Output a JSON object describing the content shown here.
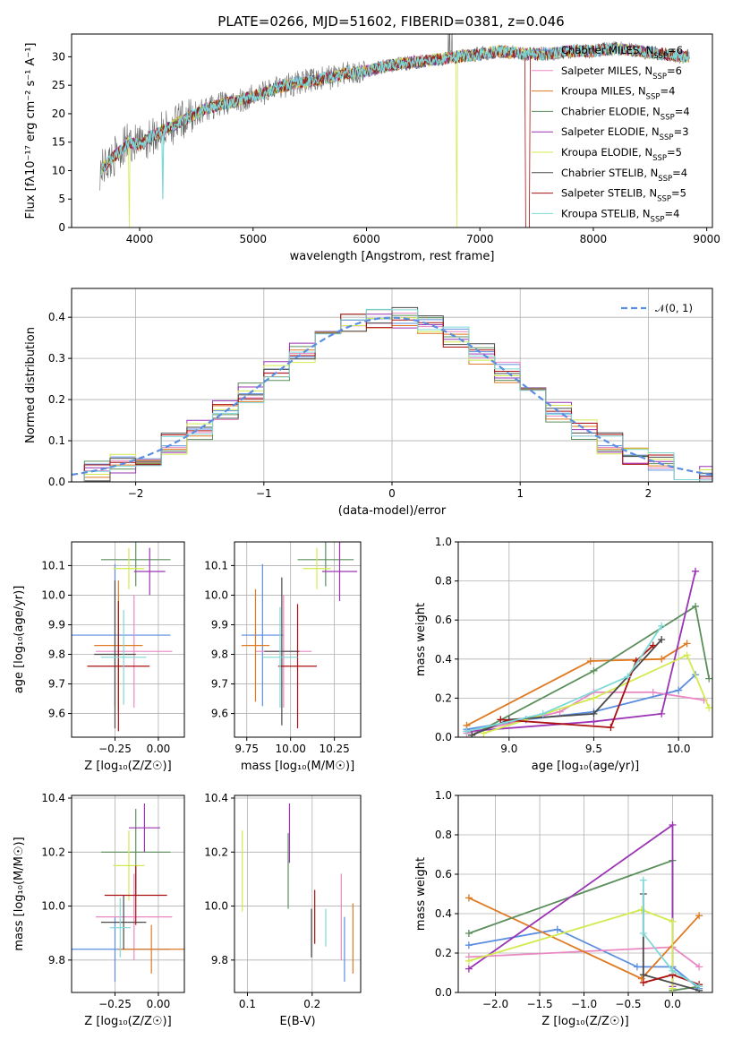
{
  "title": "PLATE=0266, MJD=51602, FIBERID=0381, z=0.046",
  "colors": {
    "chabrier_miles": "#5b8ee0",
    "salpeter_miles": "#ea88c4",
    "kroupa_miles": "#e07a22",
    "chabrier_elodie": "#5c8f5c",
    "salpeter_elodie": "#9b34b4",
    "kroupa_elodie": "#d2ea4e",
    "chabrier_stelib": "#4a4a4a",
    "salpeter_stelib": "#aa1010",
    "kroupa_stelib": "#7fd8d8",
    "gaussian": "#5b8ee0"
  },
  "chart_data": [
    {
      "id": "spectrum",
      "type": "line",
      "title": "PLATE=0266, MJD=51602, FIBERID=0381, z=0.046",
      "xlabel": "wavelength [Angstrom, rest frame]",
      "ylabel": "Flux [fλ10⁻¹⁷ erg cm⁻² s⁻¹ A⁻¹]",
      "xlim": [
        3400,
        9050
      ],
      "ylim": [
        0,
        34
      ],
      "xticks": [
        "4000",
        "5000",
        "6000",
        "7000",
        "8000",
        "9000"
      ],
      "yticks": [
        "0",
        "5",
        "10",
        "15",
        "20",
        "25",
        "30"
      ],
      "grid": false,
      "legend_position": "right",
      "continuum": {
        "x": [
          3650,
          3700,
          3800,
          3900,
          4000,
          4100,
          4200,
          4400,
          4600,
          4800,
          5000,
          5200,
          5400,
          5600,
          5800,
          6000,
          6200,
          6400,
          6600,
          6800,
          7000,
          7200,
          7400,
          7600,
          7800,
          8000,
          8200,
          8400,
          8600,
          8800
        ],
        "y": [
          10,
          11,
          13,
          15,
          14.5,
          16,
          17,
          19,
          21,
          22,
          23,
          24.5,
          25.5,
          26,
          27,
          27.5,
          28.5,
          29,
          29.5,
          30,
          30.5,
          31,
          30.5,
          30.5,
          31,
          31,
          31.5,
          31,
          30.5,
          30
        ]
      },
      "series": [
        {
          "name": "Chabrier MILES",
          "nssp": "6",
          "color": "chabrier_miles"
        },
        {
          "name": "Salpeter MILES",
          "nssp": "6",
          "color": "salpeter_miles"
        },
        {
          "name": "Kroupa MILES",
          "nssp": "4",
          "color": "kroupa_miles"
        },
        {
          "name": "Chabrier ELODIE",
          "nssp": "4",
          "color": "chabrier_elodie"
        },
        {
          "name": "Salpeter ELODIE",
          "nssp": "3",
          "color": "salpeter_elodie"
        },
        {
          "name": "Kroupa ELODIE",
          "nssp": "5",
          "color": "kroupa_elodie"
        },
        {
          "name": "Chabrier STELIB",
          "nssp": "4",
          "color": "chabrier_stelib"
        },
        {
          "name": "Salpeter STELIB",
          "nssp": "5",
          "color": "salpeter_stelib"
        },
        {
          "name": "Kroupa STELIB",
          "nssp": "4",
          "color": "kroupa_stelib"
        }
      ]
    },
    {
      "id": "residuals",
      "type": "histogram",
      "xlabel": "(data-model)/error",
      "ylabel": "Normed distribution",
      "xlim": [
        -2.5,
        2.5
      ],
      "ylim": [
        0,
        0.47
      ],
      "xticks": [
        "−2",
        "−1",
        "0",
        "1",
        "2"
      ],
      "yticks": [
        "0.0",
        "0.1",
        "0.2",
        "0.3",
        "0.4"
      ],
      "grid": true,
      "legend_position": "top-right",
      "legend_label": "𝒩(0, 1)",
      "bin_width": 0.2
    },
    {
      "id": "age_vs_Z",
      "type": "errorbar",
      "xlabel": "Z [log₁₀(Z/Z☉)]",
      "ylabel": "age  [log₁₀(age/yr)]",
      "xlim": [
        -0.5,
        0.15
      ],
      "ylim": [
        9.52,
        10.18
      ],
      "xticks": [
        "−0.25",
        "0.00"
      ],
      "yticks": [
        "9.6",
        "9.7",
        "9.8",
        "9.9",
        "10.0",
        "10.1"
      ],
      "grid": true,
      "points": [
        {
          "series": "Chabrier MILES",
          "x": -0.25,
          "xerr": 0.32,
          "y": 9.865,
          "yerr": 0.24
        },
        {
          "series": "Salpeter MILES",
          "x": -0.14,
          "xerr": 0.22,
          "y": 9.81,
          "yerr": 0.19
        },
        {
          "series": "Kroupa MILES",
          "x": -0.23,
          "xerr": 0.14,
          "y": 9.83,
          "yerr": 0.22
        },
        {
          "series": "Chabrier ELODIE",
          "x": -0.13,
          "xerr": 0.2,
          "y": 10.12,
          "yerr": 0.09
        },
        {
          "series": "Salpeter ELODIE",
          "x": -0.05,
          "xerr": 0.09,
          "y": 10.08,
          "yerr": 0.08
        },
        {
          "series": "Kroupa ELODIE",
          "x": -0.17,
          "xerr": 0.09,
          "y": 10.09,
          "yerr": 0.07
        },
        {
          "series": "Chabrier STELIB",
          "x": -0.25,
          "xerr": 0.12,
          "y": 9.8,
          "yerr": 0.25
        },
        {
          "series": "Salpeter STELIB",
          "x": -0.23,
          "xerr": 0.18,
          "y": 9.76,
          "yerr": 0.22
        },
        {
          "series": "Kroupa STELIB",
          "x": -0.2,
          "xerr": 0.13,
          "y": 9.79,
          "yerr": 0.16
        }
      ]
    },
    {
      "id": "age_vs_mass",
      "type": "errorbar",
      "xlabel": "mass [log₁₀(M/M☉)]",
      "ylabel": "",
      "xlim": [
        9.68,
        10.4
      ],
      "ylim": [
        9.52,
        10.18
      ],
      "xticks": [
        "9.75",
        "10.00",
        "10.25"
      ],
      "yticks": [
        "9.6",
        "9.7",
        "9.8",
        "9.9",
        "10.0",
        "10.1"
      ],
      "grid": true,
      "points": [
        {
          "series": "Chabrier MILES",
          "x": 9.84,
          "xerr": 0.12,
          "y": 9.865,
          "yerr": 0.24
        },
        {
          "series": "Salpeter MILES",
          "x": 9.96,
          "xerr": 0.16,
          "y": 9.81,
          "yerr": 0.19
        },
        {
          "series": "Kroupa MILES",
          "x": 9.8,
          "xerr": 0.08,
          "y": 9.83,
          "yerr": 0.19
        },
        {
          "series": "Chabrier ELODIE",
          "x": 10.2,
          "xerr": 0.16,
          "y": 10.12,
          "yerr": 0.09
        },
        {
          "series": "Salpeter ELODIE",
          "x": 10.28,
          "xerr": 0.1,
          "y": 10.08,
          "yerr": 0.1
        },
        {
          "series": "Kroupa ELODIE",
          "x": 10.15,
          "xerr": 0.08,
          "y": 10.09,
          "yerr": 0.07
        },
        {
          "series": "Chabrier STELIB",
          "x": 9.95,
          "xerr": 0.1,
          "y": 9.81,
          "yerr": 0.25
        },
        {
          "series": "Salpeter STELIB",
          "x": 10.04,
          "xerr": 0.11,
          "y": 9.76,
          "yerr": 0.21
        },
        {
          "series": "Kroupa STELIB",
          "x": 9.94,
          "xerr": 0.1,
          "y": 9.79,
          "yerr": 0.17
        }
      ]
    },
    {
      "id": "weight_vs_age",
      "type": "line",
      "xlabel": "age  [log₁₀(age/yr)]",
      "ylabel": "mass weight",
      "xlim": [
        8.7,
        10.2
      ],
      "ylim": [
        0,
        1
      ],
      "xticks": [
        "9.0",
        "9.5",
        "10.0"
      ],
      "yticks": [
        "0.0",
        "0.2",
        "0.4",
        "0.6",
        "0.8",
        "1.0"
      ],
      "grid": true,
      "series": [
        {
          "name": "Chabrier MILES",
          "color": "chabrier_miles",
          "x": [
            8.75,
            9.1,
            9.5,
            10.0,
            10.1
          ],
          "y": [
            0.04,
            0.09,
            0.13,
            0.24,
            0.32
          ]
        },
        {
          "name": "Salpeter MILES",
          "color": "salpeter_miles",
          "x": [
            8.75,
            9.3,
            9.5,
            9.85,
            10.15
          ],
          "y": [
            0.02,
            0.13,
            0.23,
            0.23,
            0.19
          ]
        },
        {
          "name": "Kroupa MILES",
          "color": "kroupa_miles",
          "x": [
            8.75,
            9.48,
            9.9,
            10.05
          ],
          "y": [
            0.06,
            0.39,
            0.4,
            0.48
          ]
        },
        {
          "name": "Chabrier ELODIE",
          "color": "chabrier_elodie",
          "x": [
            8.78,
            9.5,
            10.1,
            10.18
          ],
          "y": [
            0.01,
            0.34,
            0.67,
            0.3
          ]
        },
        {
          "name": "Salpeter ELODIE",
          "color": "salpeter_elodie",
          "x": [
            8.75,
            9.5,
            9.9,
            10.1
          ],
          "y": [
            0.03,
            0.08,
            0.12,
            0.85
          ]
        },
        {
          "name": "Kroupa ELODIE",
          "color": "kroupa_elodie",
          "x": [
            8.85,
            9.5,
            10.05,
            10.18
          ],
          "y": [
            0.02,
            0.2,
            0.42,
            0.15
          ]
        },
        {
          "name": "Chabrier STELIB",
          "color": "chabrier_stelib",
          "x": [
            8.78,
            9.0,
            9.5,
            9.9
          ],
          "y": [
            0.01,
            0.09,
            0.12,
            0.5
          ]
        },
        {
          "name": "Salpeter STELIB",
          "color": "salpeter_stelib",
          "x": [
            8.95,
            9.6,
            9.75,
            9.85
          ],
          "y": [
            0.09,
            0.05,
            0.39,
            0.47
          ]
        },
        {
          "name": "Kroupa STELIB",
          "color": "kroupa_stelib",
          "x": [
            8.75,
            9.2,
            9.7,
            9.9
          ],
          "y": [
            0.03,
            0.12,
            0.31,
            0.57
          ]
        }
      ]
    },
    {
      "id": "mass_vs_Z",
      "type": "errorbar",
      "xlabel": "Z [log₁₀(Z/Z☉)]",
      "ylabel": "mass [log₁₀(M/M☉)]",
      "xlim": [
        -0.5,
        0.15
      ],
      "ylim": [
        9.68,
        10.41
      ],
      "xticks": [
        "−0.25",
        "0.00"
      ],
      "yticks": [
        "9.8",
        "10.0",
        "10.2",
        "10.4"
      ],
      "grid": true,
      "points": [
        {
          "series": "Chabrier MILES",
          "x": -0.25,
          "xerr": 0.32,
          "y": 9.84,
          "yerr": 0.12
        },
        {
          "series": "Salpeter MILES",
          "x": -0.14,
          "xerr": 0.22,
          "y": 9.96,
          "yerr": 0.16
        },
        {
          "series": "Kroupa MILES",
          "x": -0.04,
          "xerr": 0.19,
          "y": 9.84,
          "yerr": 0.09
        },
        {
          "series": "Chabrier ELODIE",
          "x": -0.13,
          "xerr": 0.2,
          "y": 10.2,
          "yerr": 0.16
        },
        {
          "series": "Salpeter ELODIE",
          "x": -0.08,
          "xerr": 0.09,
          "y": 10.29,
          "yerr": 0.09
        },
        {
          "series": "Kroupa ELODIE",
          "x": -0.17,
          "xerr": 0.09,
          "y": 10.15,
          "yerr": 0.13
        },
        {
          "series": "Chabrier STELIB",
          "x": -0.2,
          "xerr": 0.13,
          "y": 9.94,
          "yerr": 0.1
        },
        {
          "series": "Salpeter STELIB",
          "x": -0.13,
          "xerr": 0.18,
          "y": 10.04,
          "yerr": 0.11
        },
        {
          "series": "Kroupa STELIB",
          "x": -0.22,
          "xerr": 0.06,
          "y": 9.92,
          "yerr": 0.11
        }
      ]
    },
    {
      "id": "mass_vs_ebv",
      "type": "errorbar",
      "xlabel": "E(B-V)",
      "ylabel": "",
      "xlim": [
        0.08,
        0.275
      ],
      "ylim": [
        9.68,
        10.41
      ],
      "xticks": [
        "0.1",
        "0.2"
      ],
      "yticks": [
        "9.8",
        "10.0",
        "10.2",
        "10.4"
      ],
      "grid": true,
      "points": [
        {
          "series": "Chabrier MILES",
          "x": 0.25,
          "xerr": 0,
          "y": 9.84,
          "yerr": 0.12
        },
        {
          "series": "Salpeter MILES",
          "x": 0.245,
          "xerr": 0,
          "y": 9.96,
          "yerr": 0.16
        },
        {
          "series": "Kroupa MILES",
          "x": 0.263,
          "xerr": 0,
          "y": 9.88,
          "yerr": 0.13
        },
        {
          "series": "Chabrier ELODIE",
          "x": 0.163,
          "xerr": 0,
          "y": 10.13,
          "yerr": 0.14
        },
        {
          "series": "Salpeter ELODIE",
          "x": 0.165,
          "xerr": 0,
          "y": 10.27,
          "yerr": 0.11
        },
        {
          "series": "Kroupa ELODIE",
          "x": 0.092,
          "xerr": 0,
          "y": 10.13,
          "yerr": 0.15
        },
        {
          "series": "Chabrier STELIB",
          "x": 0.199,
          "xerr": 0,
          "y": 9.9,
          "yerr": 0.09
        },
        {
          "series": "Salpeter STELIB",
          "x": 0.204,
          "xerr": 0,
          "y": 9.96,
          "yerr": 0.1
        },
        {
          "series": "Kroupa STELIB",
          "x": 0.221,
          "xerr": 0,
          "y": 9.92,
          "yerr": 0.07
        }
      ]
    },
    {
      "id": "weight_vs_Z",
      "type": "line",
      "xlabel": "Z [log₁₀(Z/Z☉)]",
      "ylabel": "mass weight",
      "xlim": [
        -2.42,
        0.45
      ],
      "ylim": [
        0,
        1
      ],
      "xticks": [
        "−2.0",
        "−1.5",
        "−1.0",
        "−0.5",
        "0.0"
      ],
      "yticks": [
        "0.0",
        "0.2",
        "0.4",
        "0.6",
        "0.8",
        "1.0"
      ],
      "grid": true,
      "series": [
        {
          "name": "Chabrier MILES",
          "color": "chabrier_miles",
          "x": [
            -2.3,
            -1.3,
            -0.4,
            0.0,
            0.3
          ],
          "y": [
            0.24,
            0.32,
            0.13,
            0.13,
            0.02
          ]
        },
        {
          "name": "Salpeter MILES",
          "color": "salpeter_miles",
          "x": [
            -2.3,
            0.0,
            0.3
          ],
          "y": [
            0.18,
            0.23,
            0.13
          ]
        },
        {
          "name": "Kroupa MILES",
          "color": "kroupa_miles",
          "x": [
            -2.3,
            -0.35,
            0.3
          ],
          "y": [
            0.48,
            0.07,
            0.39
          ]
        },
        {
          "name": "Chabrier ELODIE",
          "color": "chabrier_elodie",
          "x": [
            -2.3,
            0.0,
            0.0,
            0.3
          ],
          "y": [
            0.3,
            0.67,
            0.01,
            0.03
          ]
        },
        {
          "name": "Salpeter ELODIE",
          "color": "salpeter_elodie",
          "x": [
            -2.3,
            0.0,
            0.0
          ],
          "y": [
            0.12,
            0.85,
            0.03
          ]
        },
        {
          "name": "Kroupa ELODIE",
          "color": "kroupa_elodie",
          "x": [
            -2.3,
            -0.35,
            0.0,
            0.0
          ],
          "y": [
            0.16,
            0.42,
            0.36,
            0.02
          ]
        },
        {
          "name": "Chabrier STELIB",
          "color": "chabrier_stelib",
          "x": [
            -0.33,
            -0.33,
            0.3
          ],
          "y": [
            0.5,
            0.09,
            0.01
          ]
        },
        {
          "name": "Salpeter STELIB",
          "color": "salpeter_stelib",
          "x": [
            -0.33,
            0.0,
            0.3
          ],
          "y": [
            0.05,
            0.09,
            0.04
          ]
        },
        {
          "name": "Kroupa STELIB",
          "color": "kroupa_stelib",
          "x": [
            -0.33,
            -0.33,
            0.0,
            0.3
          ],
          "y": [
            0.57,
            0.3,
            0.11,
            0.03
          ]
        }
      ]
    }
  ]
}
